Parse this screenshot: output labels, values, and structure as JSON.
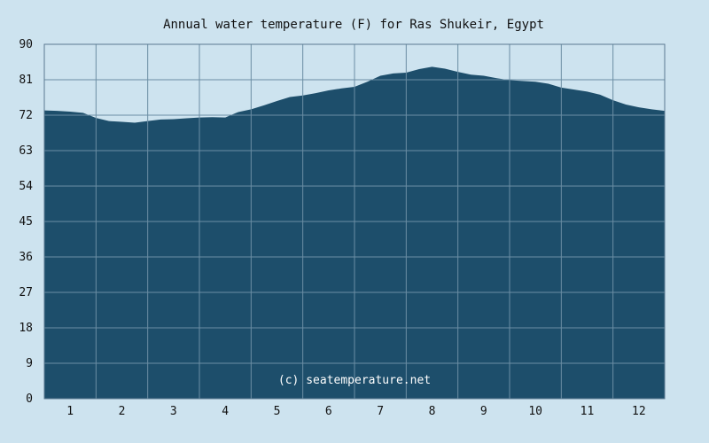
{
  "chart_data": {
    "type": "area",
    "title": "Annual water temperature (F) for Ras Shukeir, Egypt",
    "xlabel": "",
    "ylabel": "",
    "x_tick_labels": [
      "1",
      "2",
      "3",
      "4",
      "5",
      "6",
      "7",
      "8",
      "9",
      "10",
      "11",
      "12"
    ],
    "y_tick_labels": [
      "0",
      "9",
      "18",
      "27",
      "36",
      "45",
      "54",
      "63",
      "72",
      "81",
      "90"
    ],
    "ylim": [
      0,
      90
    ],
    "xlim": [
      0.5,
      12.5
    ],
    "grid": true,
    "credit": "(c) seatemperature.net",
    "x": [
      0.5,
      0.75,
      1.0,
      1.25,
      1.5,
      1.75,
      2.0,
      2.25,
      2.5,
      2.75,
      3.0,
      3.25,
      3.5,
      3.75,
      4.0,
      4.25,
      4.5,
      4.75,
      5.0,
      5.25,
      5.5,
      5.75,
      6.0,
      6.25,
      6.5,
      6.75,
      7.0,
      7.25,
      7.5,
      7.75,
      8.0,
      8.25,
      8.5,
      8.75,
      9.0,
      9.25,
      9.5,
      9.75,
      10.0,
      10.25,
      10.5,
      10.75,
      11.0,
      11.25,
      11.5,
      11.75,
      12.0,
      12.25,
      12.5
    ],
    "values": [
      73.2,
      73.1,
      72.9,
      72.6,
      71.3,
      70.5,
      70.3,
      70.1,
      70.5,
      70.9,
      71.0,
      71.2,
      71.4,
      71.5,
      71.4,
      72.8,
      73.5,
      74.5,
      75.6,
      76.6,
      77.0,
      77.6,
      78.3,
      78.8,
      79.2,
      80.5,
      82.0,
      82.6,
      82.8,
      83.7,
      84.3,
      83.8,
      83.0,
      82.3,
      82.0,
      81.4,
      80.9,
      80.7,
      80.5,
      80.0,
      79.0,
      78.5,
      78.0,
      77.2,
      75.8,
      74.7,
      74.0,
      73.5,
      73.1
    ],
    "colors": {
      "background": "#cde3ef",
      "plot_fill": "#1d4e6b",
      "grid": "#6b8ea4",
      "axis": "#5a7a90"
    }
  }
}
